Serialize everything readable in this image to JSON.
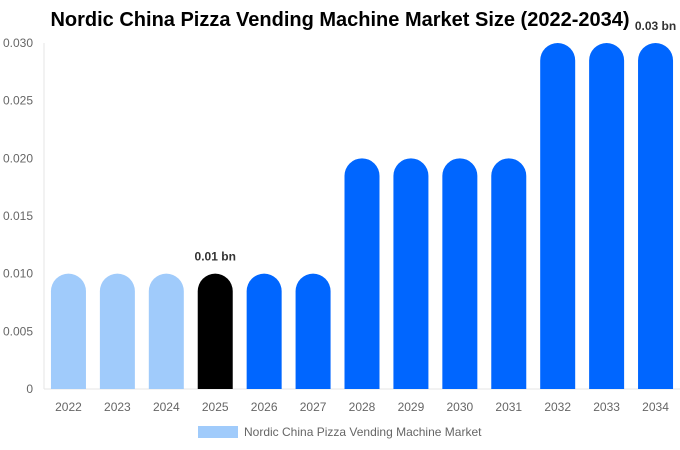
{
  "chart_data": {
    "type": "bar",
    "title": "Nordic China Pizza Vending Machine Market Size (2022-2034)",
    "categories": [
      "2022",
      "2023",
      "2024",
      "2025",
      "2026",
      "2027",
      "2028",
      "2029",
      "2030",
      "2031",
      "2032",
      "2033",
      "2034"
    ],
    "series": [
      {
        "name": "Nordic China Pizza Vending Machine Market",
        "values": [
          0.01,
          0.01,
          0.01,
          0.01,
          0.01,
          0.01,
          0.02,
          0.02,
          0.02,
          0.02,
          0.03,
          0.03,
          0.03
        ]
      }
    ],
    "bar_colors": [
      "#a0cbfb",
      "#a0cbfb",
      "#a0cbfb",
      "#000000",
      "#0066ff",
      "#0066ff",
      "#0066ff",
      "#0066ff",
      "#0066ff",
      "#0066ff",
      "#0066ff",
      "#0066ff",
      "#0066ff"
    ],
    "yticks": [
      "0",
      "0.005",
      "0.010",
      "0.015",
      "0.020",
      "0.025",
      "0.030"
    ],
    "ylim": [
      0,
      0.03
    ],
    "data_labels": [
      {
        "index": 3,
        "text": "0.01 bn"
      },
      {
        "index": 12,
        "text": "0.03 bn"
      }
    ],
    "legend_color": "#a0cbfb",
    "legend_placement": "bottom",
    "grid": false
  }
}
